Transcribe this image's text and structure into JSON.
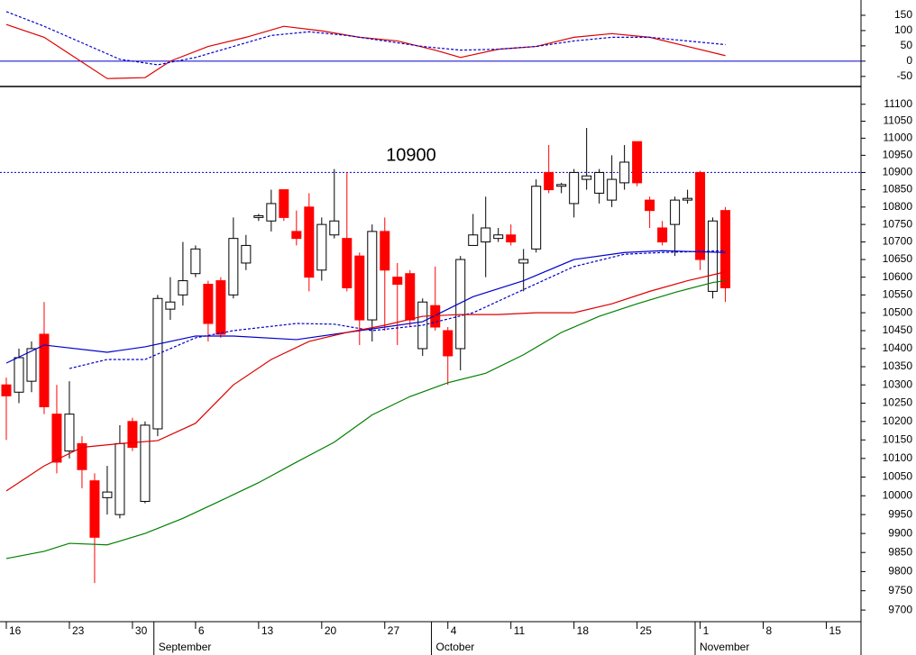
{
  "chart_data": [
    {
      "type": "line",
      "xlim": [
        -0.5,
        67.75
      ],
      "ylim": [
        -80,
        200
      ],
      "yticks": [
        -50,
        0,
        50,
        100,
        150
      ],
      "reference_line": {
        "value": 0,
        "color": "#0000cc"
      },
      "series": [
        {
          "color": "#dd0000",
          "dashed": false,
          "x": [
            0,
            3,
            5,
            8,
            11,
            13,
            16,
            19,
            22,
            25,
            28,
            31,
            34,
            36,
            39,
            42,
            45,
            48,
            51,
            54,
            57
          ],
          "values": [
            120,
            78,
            24,
            -57,
            -54,
            0,
            48,
            78,
            114,
            99,
            78,
            66,
            36,
            12,
            39,
            48,
            78,
            90,
            78,
            48,
            18
          ]
        },
        {
          "color": "#0000cc",
          "dashed": true,
          "x": [
            0,
            3,
            6,
            9,
            12,
            15,
            18,
            21,
            24,
            27,
            30,
            33,
            36,
            39,
            42,
            45,
            48,
            51,
            54,
            57
          ],
          "values": [
            162,
            114,
            60,
            6,
            -12,
            12,
            48,
            84,
            96,
            84,
            66,
            48,
            36,
            39,
            48,
            66,
            78,
            78,
            66,
            54
          ]
        }
      ]
    },
    {
      "type": "candlestick",
      "log_scale": true,
      "xlim": [
        -0.5,
        67.75
      ],
      "ylim": [
        9670,
        11150
      ],
      "yticks": [
        9700,
        9750,
        9800,
        9850,
        9900,
        9950,
        10000,
        10050,
        10100,
        10150,
        10200,
        10250,
        10300,
        10350,
        10400,
        10450,
        10500,
        10550,
        10600,
        10650,
        10700,
        10750,
        10800,
        10850,
        10900,
        10950,
        11000,
        11050,
        11100
      ],
      "xticks": [
        {
          "value": 0,
          "label": "16"
        },
        {
          "value": 5,
          "label": "23"
        },
        {
          "value": 10,
          "label": "30"
        },
        {
          "value": 15,
          "label": "6"
        },
        {
          "value": 20,
          "label": "13"
        },
        {
          "value": 25,
          "label": "20"
        },
        {
          "value": 30,
          "label": "27"
        },
        {
          "value": 35,
          "label": "4"
        },
        {
          "value": 40,
          "label": "11"
        },
        {
          "value": 45,
          "label": "18"
        },
        {
          "value": 50,
          "label": "25"
        },
        {
          "value": 55,
          "label": "1"
        },
        {
          "value": 60,
          "label": "8"
        },
        {
          "value": 65,
          "label": "15"
        }
      ],
      "month_ticks": [
        {
          "value": 11.7,
          "label": "September"
        },
        {
          "value": 33.7,
          "label": "October"
        },
        {
          "value": 54.6,
          "label": "November"
        }
      ],
      "up_color": "#000000",
      "down_color": "#ff0000",
      "open": [
        10300,
        10280,
        10310,
        10440,
        10220,
        10120,
        10140,
        10040,
        9995,
        9950,
        10200,
        9985,
        10180,
        10510,
        10550,
        10610,
        10580,
        10590,
        10550,
        10640,
        10770,
        10760,
        10850,
        10730,
        10800,
        10620,
        10720,
        10710,
        10660,
        10480,
        10730,
        10600,
        10610,
        10400,
        10520,
        10450,
        10400,
        10690,
        10700,
        10710,
        10720,
        10640,
        10680,
        10900,
        10860,
        10810,
        10880,
        10840,
        10820,
        10870,
        10990,
        10820,
        10740,
        10750,
        10820,
        10900,
        10560,
        10790
      ],
      "high": [
        10320,
        10400,
        10420,
        10530,
        10300,
        10310,
        10160,
        10060,
        10080,
        10190,
        10210,
        10200,
        10550,
        10600,
        10700,
        10690,
        10590,
        10600,
        10770,
        10720,
        10780,
        10850,
        10850,
        10790,
        10840,
        10770,
        10910,
        10900,
        10670,
        10750,
        10770,
        10640,
        10620,
        10540,
        10630,
        10460,
        10660,
        10780,
        10830,
        10740,
        10750,
        10680,
        10880,
        10980,
        10870,
        10910,
        11030,
        10910,
        10950,
        10980,
        10990,
        10830,
        10760,
        10830,
        10850,
        10905,
        10770,
        10800
      ],
      "low": [
        10150,
        10250,
        10280,
        10220,
        10060,
        10100,
        10020,
        9770,
        9950,
        9940,
        10120,
        9980,
        10160,
        10480,
        10520,
        10600,
        10420,
        10430,
        10540,
        10620,
        10760,
        10730,
        10760,
        10690,
        10560,
        10590,
        10710,
        10560,
        10410,
        10420,
        10450,
        10410,
        10460,
        10380,
        10450,
        10300,
        10340,
        10690,
        10600,
        10700,
        10690,
        10560,
        10670,
        10840,
        10840,
        10770,
        10850,
        10810,
        10800,
        10850,
        10860,
        10740,
        10690,
        10660,
        10810,
        10620,
        10540,
        10530
      ],
      "close": [
        10270,
        10375,
        10400,
        10240,
        10090,
        10220,
        10070,
        9890,
        10010,
        10140,
        10130,
        10190,
        10540,
        10530,
        10590,
        10680,
        10470,
        10440,
        10710,
        10690,
        10775,
        10810,
        10770,
        10710,
        10600,
        10750,
        10760,
        10570,
        10480,
        10730,
        10620,
        10580,
        10480,
        10530,
        10460,
        10380,
        10650,
        10720,
        10740,
        10720,
        10700,
        10650,
        10860,
        10850,
        10865,
        10900,
        10890,
        10900,
        10880,
        10930,
        10870,
        10790,
        10700,
        10820,
        10825,
        10650,
        10760,
        10570
      ],
      "series": [
        {
          "color": "#0000cc",
          "dashed": false,
          "x": [
            0,
            3,
            8,
            11,
            15,
            18,
            23,
            28,
            33,
            37,
            41,
            45,
            49,
            52,
            57
          ],
          "values": [
            10360,
            10410,
            10390,
            10405,
            10435,
            10435,
            10425,
            10450,
            10475,
            10545,
            10590,
            10650,
            10670,
            10675,
            10670
          ]
        },
        {
          "color": "#0000cc",
          "dashed": true,
          "x": [
            5,
            8,
            11,
            15,
            18,
            23,
            26,
            29,
            33,
            37,
            41,
            45,
            49,
            52,
            57
          ],
          "values": [
            10345,
            10370,
            10370,
            10430,
            10450,
            10470,
            10468,
            10450,
            10465,
            10500,
            10565,
            10630,
            10665,
            10670,
            10675
          ]
        },
        {
          "color": "#dd0000",
          "dashed": false,
          "x": [
            0,
            3,
            6,
            9,
            12,
            15,
            18,
            21,
            24,
            27,
            30,
            33,
            36,
            39,
            42,
            45,
            48,
            51,
            54,
            57
          ],
          "values": [
            10013,
            10080,
            10130,
            10140,
            10148,
            10195,
            10300,
            10370,
            10420,
            10445,
            10465,
            10490,
            10495,
            10495,
            10500,
            10500,
            10525,
            10560,
            10590,
            10615
          ]
        },
        {
          "color": "#008000",
          "dashed": false,
          "x": [
            0,
            3,
            5,
            8,
            11,
            14,
            17,
            20,
            23,
            26,
            29,
            32,
            35,
            38,
            41,
            44,
            47,
            50,
            53,
            56,
            57
          ],
          "values": [
            9834,
            9853,
            9874,
            9870,
            9900,
            9940,
            9987,
            10035,
            10090,
            10144,
            10218,
            10268,
            10306,
            10332,
            10383,
            10445,
            10490,
            10525,
            10557,
            10585,
            10590
          ]
        }
      ],
      "annotation": {
        "value": 10900,
        "color": "#0000cc"
      }
    }
  ]
}
